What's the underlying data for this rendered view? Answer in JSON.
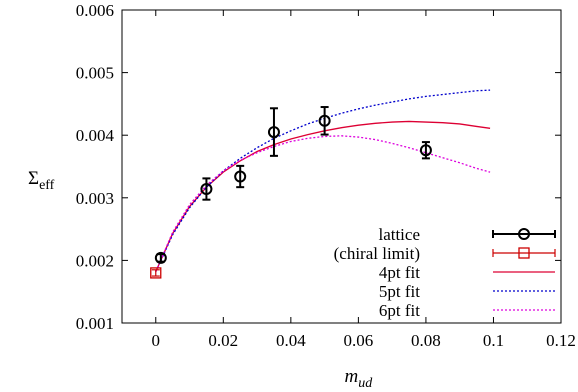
{
  "chart_data": {
    "type": "scatter",
    "xlabel_main": "m",
    "xlabel_sub": "ud",
    "ylabel_main": "Σ",
    "ylabel_sub": "eff",
    "xlim": [
      -0.01,
      0.12
    ],
    "ylim": [
      0.001,
      0.006
    ],
    "xticks": [
      0,
      0.02,
      0.04,
      0.06,
      0.08,
      0.1,
      0.12
    ],
    "xtick_labels": [
      "0",
      "0.02",
      "0.04",
      "0.06",
      "0.08",
      "0.1",
      "0.12"
    ],
    "yticks": [
      0.001,
      0.002,
      0.003,
      0.004,
      0.005,
      0.006
    ],
    "ytick_labels": [
      "0.001",
      "0.002",
      "0.003",
      "0.004",
      "0.005",
      "0.006"
    ],
    "grid": false,
    "legend_position": "bottom-right",
    "series": [
      {
        "name": "lattice",
        "kind": "points-with-errorbars",
        "color": "#000000",
        "marker": "circle",
        "points": [
          {
            "x": 0.0015,
            "y": 0.00204,
            "err": 6e-05
          },
          {
            "x": 0.015,
            "y": 0.00314,
            "err": 0.00017
          },
          {
            "x": 0.025,
            "y": 0.00334,
            "err": 0.00017
          },
          {
            "x": 0.035,
            "y": 0.00405,
            "err": 0.00038
          },
          {
            "x": 0.05,
            "y": 0.00423,
            "err": 0.00022
          },
          {
            "x": 0.08,
            "y": 0.00376,
            "err": 0.00013
          }
        ]
      },
      {
        "name": "(chiral limit)",
        "kind": "points-with-errorbars",
        "color": "#cc0000",
        "marker": "square",
        "points": [
          {
            "x": 0.0,
            "y": 0.0018,
            "err": 5e-05
          }
        ]
      },
      {
        "name": "4pt fit",
        "kind": "line",
        "color": "#dd0033",
        "dash": "solid",
        "x": [
          0.0,
          0.005,
          0.01,
          0.015,
          0.02,
          0.025,
          0.03,
          0.035,
          0.04,
          0.045,
          0.05,
          0.055,
          0.06,
          0.065,
          0.07,
          0.075,
          0.08,
          0.085,
          0.09,
          0.095,
          0.099
        ],
        "y": [
          0.00182,
          0.00243,
          0.00286,
          0.00317,
          0.00341,
          0.00359,
          0.00374,
          0.00385,
          0.00394,
          0.00401,
          0.00407,
          0.00412,
          0.00416,
          0.00419,
          0.00421,
          0.00422,
          0.00421,
          0.0042,
          0.00418,
          0.00414,
          0.00411
        ]
      },
      {
        "name": "5pt fit",
        "kind": "line",
        "color": "#0000cc",
        "dash": "dotted",
        "x": [
          0.0,
          0.005,
          0.01,
          0.015,
          0.02,
          0.025,
          0.03,
          0.035,
          0.04,
          0.045,
          0.05,
          0.055,
          0.06,
          0.065,
          0.07,
          0.075,
          0.08,
          0.085,
          0.09,
          0.095,
          0.099
        ],
        "y": [
          0.00182,
          0.00241,
          0.00284,
          0.00317,
          0.00343,
          0.00363,
          0.0038,
          0.00395,
          0.00407,
          0.00418,
          0.00427,
          0.00435,
          0.00442,
          0.00448,
          0.00453,
          0.00458,
          0.00462,
          0.00465,
          0.00468,
          0.00471,
          0.00472
        ]
      },
      {
        "name": "6pt fit",
        "kind": "line",
        "color": "#dd00dd",
        "dash": "dotted",
        "x": [
          0.0,
          0.005,
          0.01,
          0.015,
          0.02,
          0.025,
          0.03,
          0.035,
          0.04,
          0.045,
          0.05,
          0.055,
          0.06,
          0.065,
          0.07,
          0.075,
          0.08,
          0.085,
          0.09,
          0.095,
          0.099
        ],
        "y": [
          0.00182,
          0.00245,
          0.00289,
          0.0032,
          0.00343,
          0.0036,
          0.00372,
          0.00382,
          0.0039,
          0.00395,
          0.00398,
          0.00399,
          0.00397,
          0.00393,
          0.00387,
          0.0038,
          0.00372,
          0.00364,
          0.00356,
          0.00347,
          0.00341
        ]
      }
    ]
  }
}
